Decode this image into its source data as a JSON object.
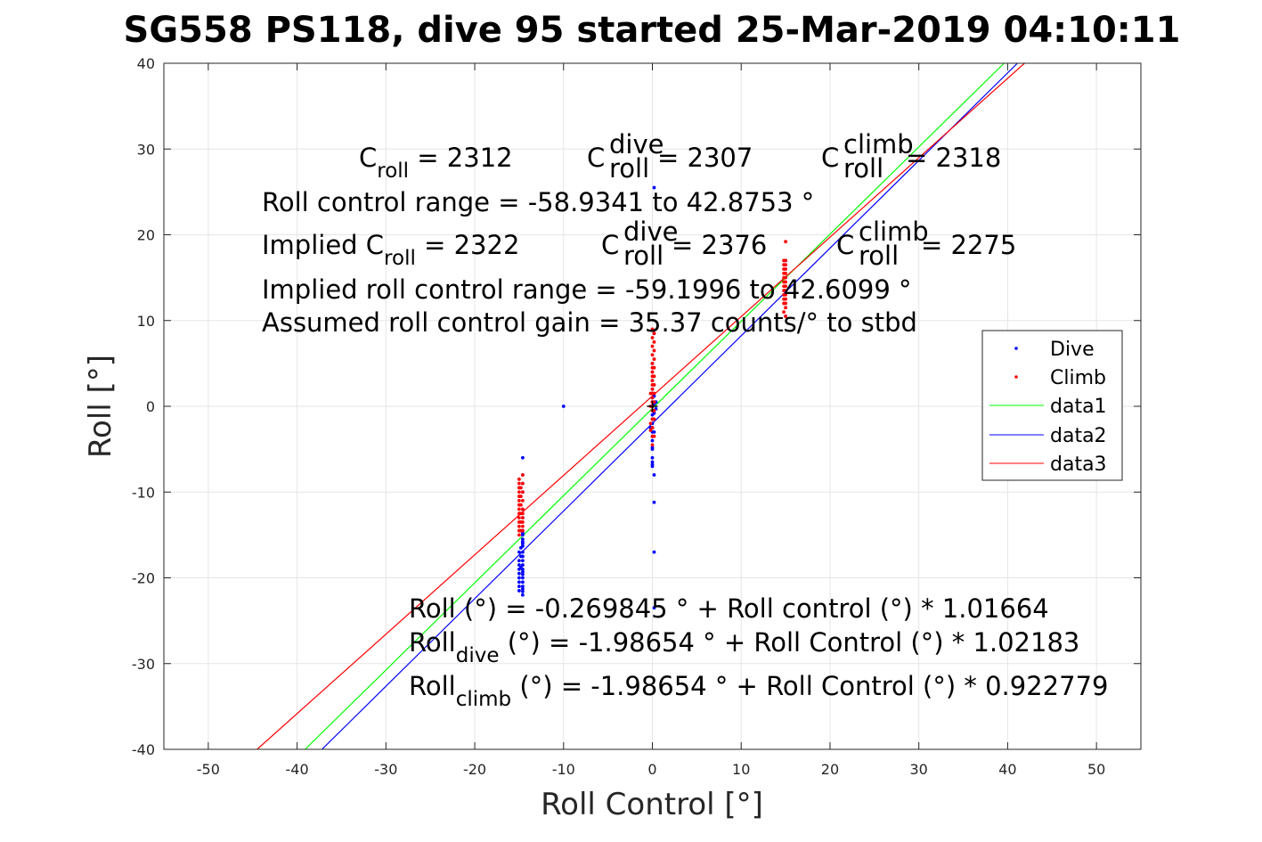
{
  "chart_data": {
    "type": "scatter",
    "title": "SG558 PS118, dive 95 started 25-Mar-2019 04:10:11",
    "xlabel": "Roll Control [°]",
    "ylabel": "Roll [°]",
    "xlim": [
      -55,
      55
    ],
    "ylim": [
      -40,
      40
    ],
    "xticks": [
      -50,
      -40,
      -30,
      -20,
      -10,
      0,
      10,
      20,
      30,
      40,
      50
    ],
    "yticks": [
      -40,
      -30,
      -20,
      -10,
      0,
      10,
      20,
      30,
      40
    ],
    "grid": true,
    "legend_position": "right",
    "colors": {
      "Dive": "#0000ff",
      "Climb": "#ff0000",
      "data1": "#00ff00",
      "data2": "#0000ff",
      "data3": "#ff0000"
    },
    "series": [
      {
        "name": "Dive",
        "kind": "points",
        "color": "#0000ff",
        "x": [
          -15,
          -15,
          -15,
          -15,
          -15,
          -15,
          -15,
          -15,
          -14.8,
          -14.8,
          -14.6,
          -14.6,
          -14.6,
          -14.6,
          -14.6,
          -14.6,
          -14.6,
          -14.6,
          -14.6,
          -14.6,
          -14.6,
          -14.6,
          -14.6,
          -14.6,
          -14.6,
          -14.6,
          -14.6,
          -14.6,
          -14.6,
          -14.6,
          -14.6,
          -14.6,
          -14.6,
          -14.6,
          -14.6,
          -14.6,
          -14.8,
          -15,
          -10,
          -0.2,
          0,
          0,
          0,
          0,
          0,
          0,
          0,
          0,
          0,
          0,
          0,
          0,
          0,
          0,
          0,
          0,
          0,
          0,
          0,
          0,
          0,
          0,
          0.2,
          0.2,
          0.2,
          0.2,
          0.2,
          0.2,
          0.2,
          0.2,
          0.2,
          0.2,
          0.4,
          0.4,
          15,
          15
        ],
        "y": [
          -18,
          -18.5,
          -19,
          -19.5,
          -20,
          -20.5,
          -21,
          -21.5,
          -17.5,
          -18.8,
          -6,
          -8,
          -9,
          -10,
          -12,
          -13,
          -14.5,
          -15,
          -15.5,
          -16,
          -17,
          -17.5,
          -18,
          -18.5,
          -19,
          -19.3,
          -19.6,
          -20,
          -20.5,
          -21,
          -21.3,
          -21.6,
          -22,
          -16.3,
          -15.8,
          -14.8,
          -16.5,
          -17,
          0,
          -2.5,
          -6,
          -5,
          -4,
          -3.5,
          -3,
          -2.5,
          -2,
          -1.5,
          -1,
          -0.5,
          0,
          0.5,
          1,
          1.5,
          2,
          3,
          4,
          5,
          -6.5,
          -6.8,
          -7,
          -4.8,
          -8,
          -11.2,
          -17,
          -23.5,
          25.5,
          8.5,
          0.3,
          1.2,
          -0.8,
          -3,
          -0.3,
          0.5,
          10.5,
          17
        ]
      },
      {
        "name": "Climb",
        "kind": "points",
        "color": "#ff0000",
        "x": [
          -15,
          -15,
          -15,
          -15,
          -15,
          -15,
          -15,
          -15,
          -15,
          -15,
          -15,
          -15,
          -15,
          -15,
          -14.8,
          -14.8,
          -14.8,
          -14.8,
          -14.8,
          -14.8,
          -14.6,
          -14.6,
          -14.6,
          -14.6,
          -14.6,
          -14.6,
          -14.6,
          -14.6,
          -14.6,
          -14.6,
          -0.2,
          -0.2,
          -0.2,
          -0.2,
          0,
          0,
          0,
          0,
          0,
          0,
          0,
          0,
          0,
          0,
          0,
          0,
          0,
          0,
          0,
          0,
          0,
          0,
          0,
          0,
          0.2,
          0.2,
          0.2,
          0.2,
          0.2,
          0.2,
          0.2,
          0.2,
          0.2,
          0.2,
          0.2,
          0.2,
          14.8,
          14.8,
          14.8,
          14.8,
          14.8,
          14.8,
          14.8,
          14.8,
          14.8,
          14.8,
          14.8,
          14.8,
          15,
          15,
          15,
          15,
          15,
          15,
          15,
          15,
          15,
          15,
          15,
          15,
          15,
          15
        ],
        "y": [
          -8.5,
          -9,
          -9.5,
          -10,
          -10.5,
          -11,
          -11.5,
          -12,
          -12.5,
          -13,
          -13.5,
          -14,
          -14.5,
          -15,
          -9.5,
          -10.5,
          -11.5,
          -12.5,
          -13.5,
          -14.5,
          -8,
          -9,
          -10,
          -11,
          -12,
          -12.5,
          -13,
          -13.5,
          -14,
          -14.5,
          0,
          -2,
          -2.8,
          1.5,
          9,
          8,
          7,
          6,
          5,
          4.5,
          4,
          3.5,
          3,
          2.5,
          2,
          1.5,
          1,
          0.5,
          0,
          -0.5,
          -1.5,
          -2.5,
          -3.5,
          -4.5,
          8.5,
          7.5,
          6.5,
          5.5,
          4.5,
          3.5,
          2.5,
          1.5,
          0.5,
          -0.5,
          -1.5,
          -3.5,
          12,
          13,
          13.5,
          14,
          14.5,
          15,
          15.5,
          16,
          16.5,
          17,
          12.5,
          11,
          12,
          12.5,
          13,
          13.5,
          14,
          14.5,
          15,
          15.5,
          16,
          16.5,
          17,
          19.2,
          11.5,
          10.5
        ]
      },
      {
        "name": "data1",
        "kind": "line",
        "color": "#00ff00",
        "x": [
          -39.1,
          39.6
        ],
        "y": [
          -40,
          40
        ]
      },
      {
        "name": "data2",
        "kind": "line",
        "color": "#0000ff",
        "x": [
          -37.2,
          41.1
        ],
        "y": [
          -40,
          40
        ]
      },
      {
        "name": "data3",
        "kind": "line",
        "color": "#ff0000",
        "x": [
          -44.5,
          41.9
        ],
        "y": [
          -40,
          40
        ]
      }
    ],
    "annotations": {
      "croll": {
        "base": "C",
        "sub": "roll",
        "rest": " = 2312"
      },
      "croll_dive": {
        "base": "C",
        "sup": "dive",
        "sub": "roll",
        "rest": " = 2307"
      },
      "croll_climb": {
        "base": "C",
        "sup": "climb",
        "sub": "roll",
        "rest": " = 2318"
      },
      "range": "Roll control range = -58.9341 to 42.8753 °",
      "implied_croll": {
        "pre": "Implied C",
        "sub": "roll",
        "rest": " = 2322"
      },
      "implied_dive": {
        "base": "C",
        "sup": "dive",
        "sub": "roll",
        "rest": " = 2376"
      },
      "implied_climb": {
        "base": "C",
        "sup": "climb",
        "sub": "roll",
        "rest": " = 2275"
      },
      "implied_range": "Implied roll control range = -59.1996 to 42.6099 °",
      "gain": "Assumed roll control gain = 35.37 counts/° to stbd",
      "fit_all": "Roll (°) = -0.269845 ° + Roll control (°) * 1.01664",
      "fit_dive": {
        "base": "Roll",
        "sub": "dive",
        "rest": " (°) = -1.98654 ° + Roll Control (°) * 1.02183"
      },
      "fit_climb": {
        "base": "Roll",
        "sub": "climb",
        "rest": " (°) = -1.98654 ° + Roll Control (°) * 0.922779"
      }
    }
  }
}
